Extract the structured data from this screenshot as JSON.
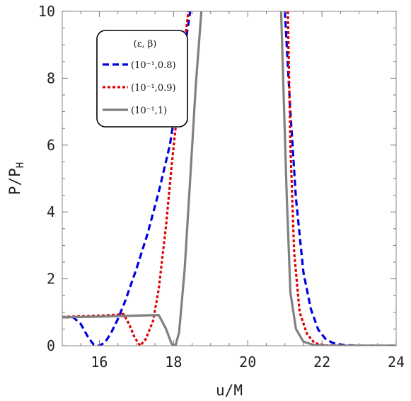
{
  "chart_data": {
    "type": "line",
    "xlabel": "u/M",
    "ylabel": "P/P_H",
    "xlim": [
      15,
      24
    ],
    "ylim": [
      0,
      10
    ],
    "xticks": [
      16,
      18,
      20,
      22,
      24
    ],
    "yticks": [
      0,
      2,
      4,
      6,
      8,
      10
    ],
    "grid": false,
    "legend": {
      "placement": "top-left",
      "title": "(ε, β)",
      "entries": [
        "(10⁻¹,0.8)",
        "(10⁻¹,0.9)",
        "(10⁻¹,1)"
      ]
    },
    "series": [
      {
        "name": "(10⁻¹,0.8)",
        "color": "#0000e0",
        "dash": "dashed",
        "points": [
          [
            15.0,
            0.85
          ],
          [
            15.3,
            0.85
          ],
          [
            15.5,
            0.65
          ],
          [
            15.7,
            0.25
          ],
          [
            15.85,
            0.03
          ],
          [
            16.0,
            0.0
          ],
          [
            16.15,
            0.1
          ],
          [
            16.3,
            0.35
          ],
          [
            16.5,
            0.8
          ],
          [
            16.7,
            1.35
          ],
          [
            17.0,
            2.3
          ],
          [
            17.3,
            3.35
          ],
          [
            17.6,
            4.6
          ],
          [
            17.9,
            6.0
          ],
          [
            18.1,
            7.4
          ],
          [
            18.3,
            8.9
          ],
          [
            18.45,
            10.0
          ],
          [
            null,
            null
          ],
          [
            21.0,
            10.0
          ],
          [
            21.15,
            7.0
          ],
          [
            21.3,
            4.4
          ],
          [
            21.5,
            2.2
          ],
          [
            21.7,
            1.1
          ],
          [
            21.9,
            0.48
          ],
          [
            22.1,
            0.2
          ],
          [
            22.3,
            0.08
          ],
          [
            22.6,
            0.02
          ],
          [
            23.0,
            0.0
          ],
          [
            24.0,
            0.0
          ]
        ]
      },
      {
        "name": "(10⁻¹,0.9)",
        "color": "#e00000",
        "dash": "dotted",
        "points": [
          [
            15.0,
            0.86
          ],
          [
            15.5,
            0.88
          ],
          [
            16.0,
            0.9
          ],
          [
            16.5,
            0.93
          ],
          [
            16.65,
            0.95
          ],
          [
            16.8,
            0.65
          ],
          [
            16.95,
            0.25
          ],
          [
            17.1,
            0.0
          ],
          [
            17.25,
            0.2
          ],
          [
            17.45,
            0.75
          ],
          [
            17.6,
            1.7
          ],
          [
            17.8,
            3.6
          ],
          [
            17.95,
            5.4
          ],
          [
            18.1,
            7.0
          ],
          [
            18.25,
            8.6
          ],
          [
            18.4,
            10.0
          ],
          [
            null,
            null
          ],
          [
            21.08,
            10.0
          ],
          [
            21.15,
            6.0
          ],
          [
            21.25,
            2.8
          ],
          [
            21.4,
            1.0
          ],
          [
            21.6,
            0.35
          ],
          [
            21.8,
            0.08
          ],
          [
            22.1,
            0.01
          ],
          [
            22.5,
            0.0
          ],
          [
            24.0,
            0.0
          ]
        ]
      },
      {
        "name": "(10⁻¹,1)",
        "color": "#808080",
        "dash": "solid",
        "points": [
          [
            15.0,
            0.85
          ],
          [
            16.0,
            0.87
          ],
          [
            17.0,
            0.9
          ],
          [
            17.6,
            0.92
          ],
          [
            17.8,
            0.5
          ],
          [
            17.95,
            0.05
          ],
          [
            18.05,
            0.0
          ],
          [
            18.15,
            0.4
          ],
          [
            18.3,
            2.3
          ],
          [
            18.45,
            5.0
          ],
          [
            18.6,
            7.8
          ],
          [
            18.75,
            10.0
          ],
          [
            null,
            null
          ],
          [
            20.9,
            10.0
          ],
          [
            21.05,
            4.5
          ],
          [
            21.15,
            1.6
          ],
          [
            21.3,
            0.5
          ],
          [
            21.5,
            0.12
          ],
          [
            21.8,
            0.02
          ],
          [
            22.2,
            0.0
          ],
          [
            24.0,
            0.0
          ]
        ]
      }
    ]
  }
}
